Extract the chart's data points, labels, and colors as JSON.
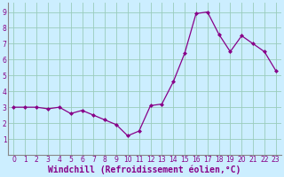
{
  "x": [
    0,
    1,
    2,
    3,
    4,
    5,
    6,
    7,
    8,
    9,
    10,
    11,
    12,
    13,
    14,
    15,
    16,
    17,
    18,
    19,
    20,
    21,
    22,
    23
  ],
  "y": [
    3.0,
    3.0,
    3.0,
    2.9,
    3.0,
    2.6,
    2.8,
    2.5,
    2.2,
    1.9,
    1.2,
    1.5,
    3.1,
    3.2,
    4.6,
    6.4,
    8.9,
    9.0,
    7.6,
    6.5,
    7.5,
    7.0,
    6.5,
    5.3
  ],
  "line_color": "#880088",
  "marker": "D",
  "marker_size": 2,
  "bg_color": "#cceeff",
  "grid_color": "#99ccbb",
  "xlabel": "Windchill (Refroidissement éolien,°C)",
  "xlim": [
    -0.5,
    23.5
  ],
  "ylim": [
    0,
    9.6
  ],
  "yticks": [
    1,
    2,
    3,
    4,
    5,
    6,
    7,
    8,
    9
  ],
  "xticks": [
    0,
    1,
    2,
    3,
    4,
    5,
    6,
    7,
    8,
    9,
    10,
    11,
    12,
    13,
    14,
    15,
    16,
    17,
    18,
    19,
    20,
    21,
    22,
    23
  ],
  "tick_label_fontsize": 5.5,
  "xlabel_fontsize": 7.0,
  "tick_color": "#880088",
  "label_color": "#880088"
}
